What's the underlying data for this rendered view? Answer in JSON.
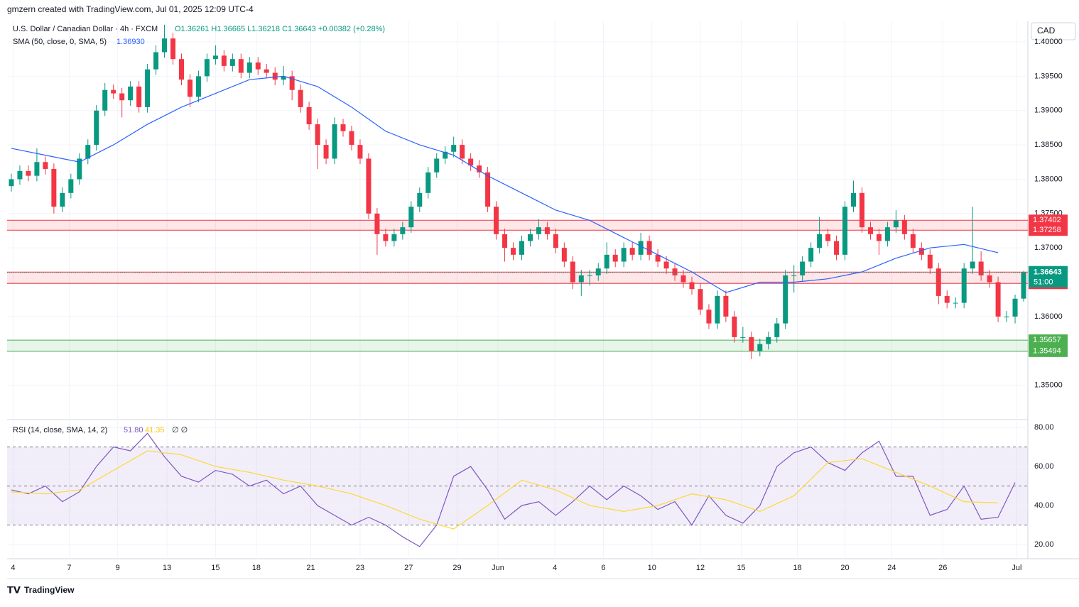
{
  "chart_data": {
    "type": "candlestick",
    "attribution": "gmzern created with TradingView.com, Jul 01, 2025 12:09 UTC-4",
    "symbol": "U.S. Dollar / Canadian Dollar · 4h · FXCM",
    "ohlc_text": "O1.36261 H1.36665 L1.36218 C1.36643 +0.00382 (+0.28%)",
    "sma_legend": "SMA (50, close, 0, SMA, 5)",
    "sma_value": "1.36930",
    "currency": "CAD",
    "countdown": "51:00",
    "brand": "TradingView",
    "up_color": "#089981",
    "down_color": "#f23645",
    "sma_color": "#2962ff",
    "ylim": [
      1.3451,
      1.403
    ],
    "yticks": [
      {
        "value": 1.35,
        "label": "1.35000"
      },
      {
        "value": 1.355,
        "label": "1.35500"
      },
      {
        "value": 1.36,
        "label": "1.36000"
      },
      {
        "value": 1.365,
        "label": "1.36500"
      },
      {
        "value": 1.37,
        "label": "1.37000"
      },
      {
        "value": 1.375,
        "label": "1.37500"
      },
      {
        "value": 1.38,
        "label": "1.38000"
      },
      {
        "value": 1.385,
        "label": "1.38500"
      },
      {
        "value": 1.39,
        "label": "1.39000"
      },
      {
        "value": 1.395,
        "label": "1.39500"
      },
      {
        "value": 1.4,
        "label": "1.40000"
      }
    ],
    "xlim": [
      -0.5,
      119.5
    ],
    "xticks": [
      {
        "value": 0.2,
        "label": "4"
      },
      {
        "value": 6.8,
        "label": "7"
      },
      {
        "value": 12.5,
        "label": "9"
      },
      {
        "value": 18.3,
        "label": "13"
      },
      {
        "value": 24,
        "label": "15"
      },
      {
        "value": 28.8,
        "label": "18"
      },
      {
        "value": 35.2,
        "label": "21"
      },
      {
        "value": 41,
        "label": "23"
      },
      {
        "value": 46.7,
        "label": "27"
      },
      {
        "value": 52.4,
        "label": "29"
      },
      {
        "value": 57.2,
        "label": "Jun"
      },
      {
        "value": 63.9,
        "label": "4"
      },
      {
        "value": 69.6,
        "label": "6"
      },
      {
        "value": 75.3,
        "label": "10"
      },
      {
        "value": 81,
        "label": "12"
      },
      {
        "value": 85.8,
        "label": "15"
      },
      {
        "value": 92.4,
        "label": "18"
      },
      {
        "value": 98,
        "label": "20"
      },
      {
        "value": 103.5,
        "label": "24"
      },
      {
        "value": 109.5,
        "label": "26"
      },
      {
        "value": 118.2,
        "label": "Jul"
      }
    ],
    "zones": [
      {
        "low": 1.37258,
        "high": 1.37402,
        "color": "#f23645"
      },
      {
        "low": 1.36482,
        "high": 1.36648,
        "color": "#f23645"
      },
      {
        "low": 1.35494,
        "high": 1.35657,
        "color": "#4caf50"
      }
    ],
    "candles": [
      [
        1.379,
        1.3808,
        1.3782,
        1.38
      ],
      [
        1.38,
        1.382,
        1.3792,
        1.3812
      ],
      [
        1.3812,
        1.382,
        1.3797,
        1.3805
      ],
      [
        1.3805,
        1.3845,
        1.3797,
        1.3825
      ],
      [
        1.3825,
        1.3833,
        1.3807,
        1.3815
      ],
      [
        1.3815,
        1.3823,
        1.375,
        1.376
      ],
      [
        1.376,
        1.3788,
        1.3752,
        1.378
      ],
      [
        1.378,
        1.3808,
        1.3772,
        1.38
      ],
      [
        1.38,
        1.3838,
        1.3792,
        1.383
      ],
      [
        1.383,
        1.3858,
        1.3822,
        1.385
      ],
      [
        1.385,
        1.3908,
        1.3842,
        1.39
      ],
      [
        1.39,
        1.394,
        1.3892,
        1.393
      ],
      [
        1.393,
        1.3938,
        1.3917,
        1.3925
      ],
      [
        1.3925,
        1.3933,
        1.389,
        1.3915
      ],
      [
        1.3915,
        1.3943,
        1.3907,
        1.3935
      ],
      [
        1.3935,
        1.3943,
        1.3897,
        1.3905
      ],
      [
        1.3905,
        1.3968,
        1.3897,
        1.396
      ],
      [
        1.396,
        1.3995,
        1.3952,
        1.3985
      ],
      [
        1.3985,
        1.4025,
        1.3977,
        1.4005
      ],
      [
        1.4005,
        1.4013,
        1.3967,
        1.3975
      ],
      [
        1.3975,
        1.3983,
        1.3937,
        1.3945
      ],
      [
        1.3945,
        1.3953,
        1.3905,
        1.392
      ],
      [
        1.392,
        1.3958,
        1.3912,
        1.395
      ],
      [
        1.395,
        1.3983,
        1.3942,
        1.3975
      ],
      [
        1.3975,
        1.3995,
        1.3967,
        1.398
      ],
      [
        1.398,
        1.3988,
        1.3957,
        1.3965
      ],
      [
        1.3965,
        1.3983,
        1.3957,
        1.3975
      ],
      [
        1.3975,
        1.3983,
        1.3947,
        1.3955
      ],
      [
        1.3955,
        1.3978,
        1.3947,
        1.397
      ],
      [
        1.397,
        1.3978,
        1.3952,
        1.396
      ],
      [
        1.396,
        1.3968,
        1.3947,
        1.3955
      ],
      [
        1.3955,
        1.3963,
        1.3937,
        1.3945
      ],
      [
        1.3945,
        1.3965,
        1.3937,
        1.395
      ],
      [
        1.395,
        1.3958,
        1.3915,
        1.393
      ],
      [
        1.393,
        1.3938,
        1.3897,
        1.3905
      ],
      [
        1.3905,
        1.3913,
        1.3872,
        1.388
      ],
      [
        1.388,
        1.3888,
        1.3815,
        1.385
      ],
      [
        1.385,
        1.3858,
        1.3822,
        1.383
      ],
      [
        1.383,
        1.389,
        1.3822,
        1.388
      ],
      [
        1.388,
        1.3888,
        1.3862,
        1.387
      ],
      [
        1.387,
        1.3878,
        1.3842,
        1.385
      ],
      [
        1.385,
        1.3858,
        1.3822,
        1.383
      ],
      [
        1.383,
        1.3838,
        1.3742,
        1.375
      ],
      [
        1.375,
        1.3758,
        1.369,
        1.372
      ],
      [
        1.372,
        1.3728,
        1.3702,
        1.371
      ],
      [
        1.371,
        1.3728,
        1.3702,
        1.372
      ],
      [
        1.372,
        1.3738,
        1.3712,
        1.373
      ],
      [
        1.373,
        1.3768,
        1.3722,
        1.376
      ],
      [
        1.376,
        1.3788,
        1.3752,
        1.378
      ],
      [
        1.378,
        1.3818,
        1.3772,
        1.381
      ],
      [
        1.381,
        1.3838,
        1.3802,
        1.383
      ],
      [
        1.383,
        1.3848,
        1.3822,
        1.384
      ],
      [
        1.384,
        1.3862,
        1.3832,
        1.385
      ],
      [
        1.385,
        1.3858,
        1.3822,
        1.383
      ],
      [
        1.383,
        1.3838,
        1.3812,
        1.382
      ],
      [
        1.382,
        1.3828,
        1.3802,
        1.381
      ],
      [
        1.381,
        1.3818,
        1.3752,
        1.376
      ],
      [
        1.376,
        1.3768,
        1.3712,
        1.372
      ],
      [
        1.372,
        1.3728,
        1.368,
        1.37
      ],
      [
        1.37,
        1.3708,
        1.3682,
        1.369
      ],
      [
        1.369,
        1.3718,
        1.3682,
        1.371
      ],
      [
        1.371,
        1.3728,
        1.3702,
        1.372
      ],
      [
        1.372,
        1.3742,
        1.3712,
        1.373
      ],
      [
        1.373,
        1.3738,
        1.3712,
        1.372
      ],
      [
        1.372,
        1.3728,
        1.3692,
        1.37
      ],
      [
        1.37,
        1.3708,
        1.3672,
        1.368
      ],
      [
        1.368,
        1.3688,
        1.364,
        1.365
      ],
      [
        1.365,
        1.3668,
        1.363,
        1.366
      ],
      [
        1.366,
        1.3668,
        1.3645,
        1.366
      ],
      [
        1.366,
        1.3678,
        1.3652,
        1.367
      ],
      [
        1.367,
        1.3708,
        1.3662,
        1.369
      ],
      [
        1.369,
        1.3698,
        1.3672,
        1.368
      ],
      [
        1.368,
        1.3708,
        1.3672,
        1.37
      ],
      [
        1.37,
        1.3708,
        1.3682,
        1.369
      ],
      [
        1.369,
        1.3722,
        1.3682,
        1.371
      ],
      [
        1.371,
        1.3718,
        1.3682,
        1.369
      ],
      [
        1.369,
        1.3698,
        1.3672,
        1.368
      ],
      [
        1.368,
        1.3688,
        1.3662,
        1.367
      ],
      [
        1.367,
        1.3678,
        1.3652,
        1.366
      ],
      [
        1.366,
        1.3668,
        1.3642,
        1.365
      ],
      [
        1.365,
        1.3658,
        1.3632,
        1.364
      ],
      [
        1.364,
        1.3648,
        1.3602,
        1.361
      ],
      [
        1.361,
        1.3618,
        1.3582,
        1.359
      ],
      [
        1.359,
        1.3638,
        1.3582,
        1.363
      ],
      [
        1.363,
        1.3638,
        1.3592,
        1.36
      ],
      [
        1.36,
        1.3608,
        1.3562,
        1.357
      ],
      [
        1.357,
        1.3585,
        1.3562,
        1.357
      ],
      [
        1.357,
        1.3578,
        1.3538,
        1.355
      ],
      [
        1.355,
        1.3568,
        1.3542,
        1.356
      ],
      [
        1.356,
        1.3578,
        1.3552,
        1.357
      ],
      [
        1.357,
        1.3598,
        1.3562,
        1.359
      ],
      [
        1.359,
        1.3668,
        1.3582,
        1.366
      ],
      [
        1.366,
        1.3675,
        1.3635,
        1.366
      ],
      [
        1.366,
        1.3688,
        1.3652,
        1.368
      ],
      [
        1.368,
        1.3708,
        1.3672,
        1.37
      ],
      [
        1.37,
        1.3745,
        1.3692,
        1.372
      ],
      [
        1.372,
        1.3728,
        1.3702,
        1.371
      ],
      [
        1.371,
        1.3718,
        1.3682,
        1.369
      ],
      [
        1.369,
        1.3768,
        1.3682,
        1.376
      ],
      [
        1.376,
        1.3798,
        1.3752,
        1.378
      ],
      [
        1.378,
        1.3788,
        1.3722,
        1.373
      ],
      [
        1.373,
        1.3738,
        1.3712,
        1.372
      ],
      [
        1.372,
        1.3728,
        1.369,
        1.371
      ],
      [
        1.371,
        1.3738,
        1.3702,
        1.373
      ],
      [
        1.373,
        1.3755,
        1.3722,
        1.374
      ],
      [
        1.374,
        1.3748,
        1.3712,
        1.372
      ],
      [
        1.372,
        1.3728,
        1.3692,
        1.37
      ],
      [
        1.37,
        1.3708,
        1.3682,
        1.369
      ],
      [
        1.369,
        1.3698,
        1.3662,
        1.367
      ],
      [
        1.367,
        1.3678,
        1.3618,
        1.363
      ],
      [
        1.363,
        1.3638,
        1.3612,
        1.362
      ],
      [
        1.362,
        1.3628,
        1.3612,
        1.362
      ],
      [
        1.362,
        1.3678,
        1.3612,
        1.367
      ],
      [
        1.367,
        1.376,
        1.3662,
        1.368
      ],
      [
        1.368,
        1.3695,
        1.3652,
        1.366
      ],
      [
        1.366,
        1.3668,
        1.3642,
        1.365
      ],
      [
        1.365,
        1.3658,
        1.3592,
        1.36
      ],
      [
        1.36,
        1.3608,
        1.3592,
        1.36
      ],
      [
        1.36,
        1.3632,
        1.359,
        1.3626
      ],
      [
        1.36261,
        1.36665,
        1.36218,
        1.36643
      ]
    ],
    "sma": {
      "step": 4,
      "values": [
        1.3845,
        1.3835,
        1.3825,
        1.385,
        1.388,
        1.3905,
        1.3925,
        1.3945,
        1.395,
        1.3935,
        1.3905,
        1.387,
        1.385,
        1.3835,
        1.3805,
        1.378,
        1.3755,
        1.374,
        1.3715,
        1.369,
        1.3665,
        1.3635,
        1.365,
        1.365,
        1.3655,
        1.3665,
        1.3685,
        1.37,
        1.3705,
        1.3693
      ]
    },
    "rsi": {
      "legend": "RSI (14, close, SMA, 14, 2)",
      "value_text": "51.80",
      "ma_text": "41.35",
      "extra": "∅ ∅",
      "color": "#7e57c2",
      "ma_color": "#fdd835",
      "ylim": [
        13.5,
        83.3
      ],
      "yticks": [
        {
          "value": 20,
          "label": "20.00"
        },
        {
          "value": 40,
          "label": "40.00"
        },
        {
          "value": 60,
          "label": "60.00"
        },
        {
          "value": 80,
          "label": "80.00"
        }
      ],
      "bands": [
        30,
        50,
        70
      ],
      "step": 2,
      "values": [
        48,
        46,
        50,
        42,
        47,
        60,
        70,
        68,
        77,
        65,
        55,
        52,
        58,
        56,
        50,
        53,
        46,
        50,
        40,
        35,
        30,
        34,
        30,
        24,
        19,
        30,
        55,
        60,
        48,
        33,
        40,
        42,
        35,
        42,
        50,
        43,
        50,
        45,
        38,
        42,
        30,
        45,
        35,
        31,
        40,
        60,
        67,
        70,
        62,
        58,
        67,
        73,
        55,
        55,
        35,
        38,
        50,
        33,
        34,
        51.8
      ],
      "ma_step": 4,
      "ma_values": [
        47,
        46,
        48,
        58,
        68,
        66,
        60,
        57,
        53,
        50,
        46,
        40,
        33,
        28,
        40,
        53,
        48,
        40,
        37,
        40,
        46,
        43,
        37,
        45,
        62,
        64,
        57,
        50,
        42,
        41.35
      ]
    }
  }
}
